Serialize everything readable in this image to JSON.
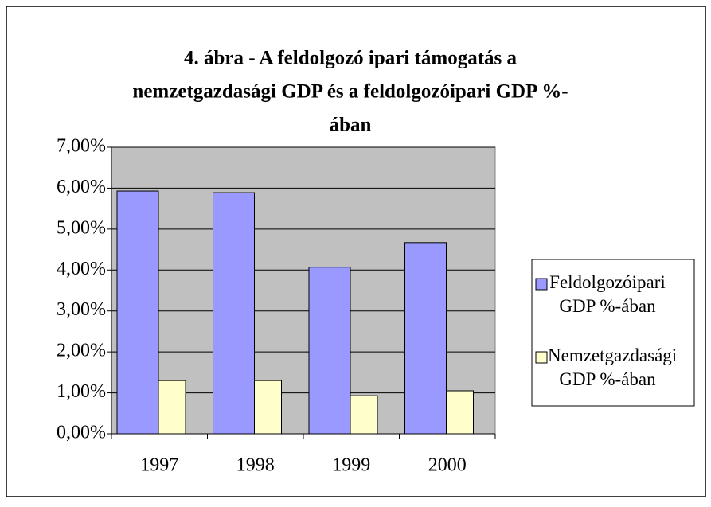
{
  "chart_data": {
    "type": "bar",
    "title": [
      "4. ábra - A feldolgozó ipari támogatás a",
      "nemzetgazdasági GDP és a feldolgozóipari GDP %-",
      "ában"
    ],
    "categories": [
      "1997",
      "1998",
      "1999",
      "2000"
    ],
    "series": [
      {
        "name": "Feldolgozóipari GDP %-ában",
        "color": "#9999ff",
        "values": [
          5.93,
          5.89,
          4.07,
          4.67
        ]
      },
      {
        "name": "Nemzetgazdasági GDP %-ában",
        "color": "#ffffcc",
        "values": [
          1.3,
          1.3,
          0.93,
          1.05
        ]
      }
    ],
    "ylim": [
      0,
      7
    ],
    "yticks": [
      {
        "value": 0,
        "label": "0,00%"
      },
      {
        "value": 1,
        "label": "1,00%"
      },
      {
        "value": 2,
        "label": "2,00%"
      },
      {
        "value": 3,
        "label": "3,00%"
      },
      {
        "value": 4,
        "label": "4,00%"
      },
      {
        "value": 5,
        "label": "5,00%"
      },
      {
        "value": 6,
        "label": "6,00%"
      },
      {
        "value": 7,
        "label": "7,00%"
      }
    ],
    "grid": true,
    "legend": "right"
  }
}
